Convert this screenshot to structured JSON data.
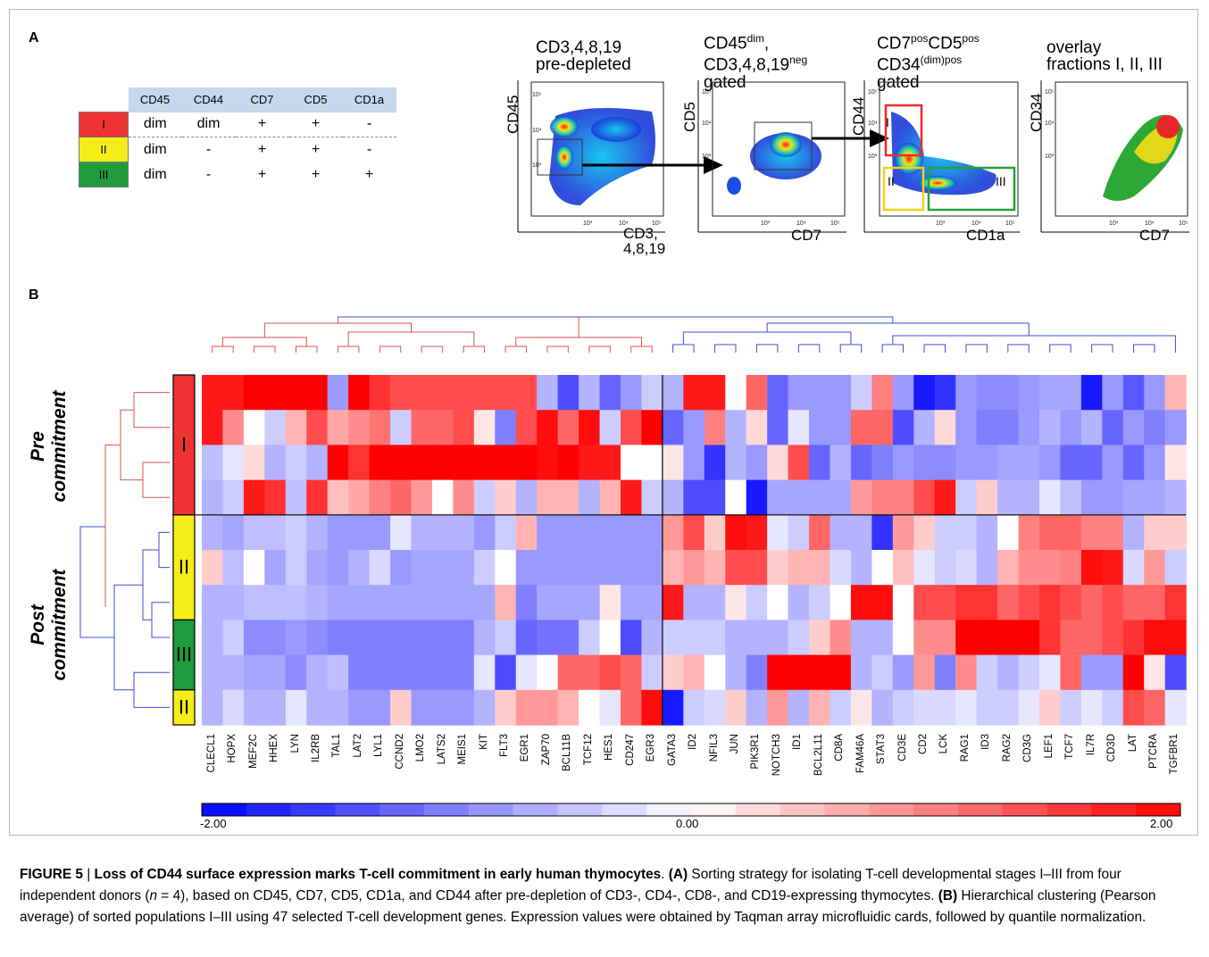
{
  "panels": {
    "a": "A",
    "b": "B"
  },
  "marker_table": {
    "headers": [
      "CD45",
      "CD44",
      "CD7",
      "CD5",
      "CD1a"
    ],
    "rows": [
      {
        "fraction": "I",
        "color": "#ee3232",
        "values": [
          "dim",
          "dim",
          "+",
          "+",
          "-"
        ]
      },
      {
        "fraction": "II",
        "color": "#f5ec1a",
        "values": [
          "dim",
          "-",
          "+",
          "+",
          "-"
        ]
      },
      {
        "fraction": "III",
        "color": "#1f9a3c",
        "values": [
          "dim",
          "-",
          "+",
          "+",
          "+"
        ]
      }
    ]
  },
  "flow": {
    "plot1": {
      "title1": "CD3,4,8,19",
      "title2": "pre-depleted",
      "ylabel": "CD45",
      "xlabel1": "CD3,",
      "xlabel2": "4,8,19"
    },
    "plot2": {
      "title1a": "CD45",
      "title1sup": "dim",
      "title1b": ",",
      "title2a": "CD3,4,8,19",
      "title2sup": "neg",
      "title3": "gated",
      "ylabel": "CD5",
      "xlabel": "CD7"
    },
    "plot3": {
      "title1a": "CD7",
      "title1sup": "pos",
      "title1b": "CD5",
      "title1sup2": "pos",
      "title2a": "CD34",
      "title2sup": "(dim)pos",
      "title3": "gated",
      "ylabel": "CD44",
      "xlabel": "CD1a",
      "gate1": "I",
      "gate2": "II",
      "gate3": "III"
    },
    "plot4": {
      "title1": "overlay",
      "title2": "fractions I, II, III",
      "ylabel": "CD34",
      "xlabel": "CD7"
    },
    "ticks": {
      "t3": "10³",
      "t4": "10⁴",
      "t5": "10⁵",
      "t0": "0"
    }
  },
  "heatmap": {
    "group_labels": {
      "pre1": "Pre",
      "pre2": "commitment",
      "post1": "Post",
      "post2": "commitment"
    },
    "sample_labels": [
      "I",
      "II",
      "III",
      "II"
    ],
    "genes": [
      "CLECL1",
      "HOPX",
      "MEF2C",
      "HHEX",
      "LYN",
      "IL2RB",
      "TAL1",
      "LAT2",
      "LYL1",
      "CCND2",
      "LMO2",
      "LATS2",
      "MEIS1",
      "KIT",
      "FLT3",
      "EGR1",
      "ZAP70",
      "BCL11B",
      "TCF12",
      "HES1",
      "CD247",
      "EGR3",
      "GATA3",
      "ID2",
      "NFIL3",
      "JUN",
      "PIK3R1",
      "NOTCH3",
      "ID1",
      "BCL2L11",
      "CD8A",
      "FAM46A",
      "STAT3",
      "CD3E",
      "CD2",
      "LCK",
      "RAG1",
      "ID3",
      "RAG2",
      "CD3G",
      "LEF1",
      "TCF7",
      "IL7R",
      "CD3D",
      "LAT",
      "PTCRA",
      "TGFBR1"
    ],
    "colorbar": {
      "min": "-2.00",
      "mid": "0.00",
      "max": "2.00"
    }
  },
  "chart_data": {
    "type": "heatmap",
    "columns_ref": "heatmap.genes",
    "rows": [
      "I",
      "I",
      "I",
      "I",
      "II",
      "II",
      "II",
      "III",
      "III",
      "II"
    ],
    "vmin": -2,
    "vmax": 2,
    "values": [
      [
        1.8,
        1.8,
        2,
        2,
        2,
        2,
        -0.8,
        2,
        1.6,
        1.4,
        1.4,
        1.4,
        1.4,
        1.4,
        1.4,
        1.4,
        -0.6,
        -1.4,
        -0.6,
        -1.2,
        -0.8,
        -0.4,
        -0.6,
        1.8,
        1.8,
        0,
        1.2,
        -1.2,
        -0.8,
        -0.8,
        -0.8,
        -0.4,
        1,
        -0.8,
        -1.8,
        -1.6,
        -0.8,
        -0.9,
        -0.9,
        -0.8,
        -0.7,
        -0.7,
        -1.8,
        -0.8,
        -1.3,
        -0.8,
        0.6
      ],
      [
        1.8,
        0.9,
        0,
        -0.4,
        0.6,
        1.4,
        0.7,
        0.9,
        1.1,
        -0.4,
        1.2,
        1.2,
        1.4,
        0.2,
        -1,
        1.4,
        1.9,
        1.2,
        1.9,
        -0.4,
        1.4,
        2,
        -1.2,
        -0.8,
        1,
        -0.6,
        0.3,
        -1.2,
        -0.2,
        -0.8,
        -0.8,
        1.2,
        1.2,
        -1.4,
        -0.6,
        0.3,
        -0.8,
        -1,
        -1,
        -0.8,
        -0.6,
        -0.8,
        -0.6,
        -1.2,
        -0.8,
        -1,
        -0.8
      ],
      [
        -0.5,
        -0.2,
        0.3,
        -0.6,
        -0.4,
        -0.6,
        2,
        1.6,
        2,
        2,
        2,
        2,
        2,
        2,
        2,
        2,
        1.9,
        2,
        1.8,
        1.8,
        0,
        0,
        0.2,
        -0.8,
        -1.6,
        -0.6,
        -0.8,
        0.3,
        1.4,
        -1.2,
        -0.6,
        -1.2,
        -1,
        -0.8,
        -0.9,
        -0.9,
        -0.8,
        -0.8,
        -0.7,
        -0.7,
        -0.8,
        -1.2,
        -1.2,
        -0.8,
        -1.2,
        -0.8,
        0.2
      ],
      [
        -0.6,
        -0.4,
        1.8,
        1.6,
        -0.5,
        1.6,
        0.5,
        0.7,
        1,
        1.2,
        0.8,
        0,
        0.9,
        -0.4,
        0.4,
        -0.6,
        0.6,
        0.6,
        -0.6,
        0.6,
        1.8,
        -0.4,
        -0.6,
        -1.4,
        -1.4,
        0,
        -1.8,
        -0.7,
        -0.7,
        -0.7,
        -0.7,
        0.8,
        1,
        1,
        1.4,
        1.8,
        -0.4,
        0.4,
        -0.6,
        -0.6,
        -0.2,
        -0.5,
        -0.8,
        -0.8,
        -0.7,
        -0.7,
        -0.6
      ],
      [
        -0.6,
        -0.7,
        -0.5,
        -0.5,
        -0.4,
        -0.6,
        -0.8,
        -0.8,
        -0.8,
        -0.2,
        -0.6,
        -0.6,
        -0.6,
        -0.8,
        -0.4,
        0.6,
        -0.8,
        -0.8,
        -0.8,
        -0.8,
        -0.8,
        -0.8,
        0.8,
        1.4,
        0.4,
        1.9,
        1.8,
        -0.2,
        -0.4,
        1.2,
        -0.6,
        -0.6,
        -1.6,
        0.8,
        0.4,
        -0.4,
        -0.4,
        -0.6,
        0,
        1,
        1.2,
        1.2,
        1,
        1,
        -0.6,
        0.4,
        0.4
      ],
      [
        0.4,
        -0.5,
        0,
        -0.7,
        -0.4,
        -0.7,
        -0.8,
        -0.6,
        -0.3,
        -0.8,
        -0.7,
        -0.7,
        -0.7,
        -0.4,
        0,
        -0.8,
        -0.8,
        -0.8,
        -0.8,
        -0.8,
        -0.8,
        -0.8,
        0.6,
        0.8,
        0.6,
        1.4,
        1.4,
        0.4,
        0.6,
        0.6,
        -0.3,
        -0.6,
        0,
        0.5,
        -0.2,
        -0.4,
        -0.3,
        -0.6,
        0.6,
        0.9,
        0.9,
        1,
        1.9,
        1.8,
        -0.3,
        0.8,
        -0.4
      ],
      [
        -0.6,
        -0.6,
        -0.5,
        -0.5,
        -0.5,
        -0.6,
        -0.7,
        -0.7,
        -0.7,
        -0.7,
        -0.7,
        -0.7,
        -0.7,
        -0.7,
        0.6,
        -1,
        -0.7,
        -0.7,
        -0.7,
        0.2,
        -0.7,
        -0.7,
        1.8,
        -0.6,
        -0.6,
        0.2,
        -0.4,
        0,
        -0.6,
        -0.4,
        0,
        1.9,
        1.9,
        0,
        1.4,
        1.4,
        1.6,
        1.6,
        1.2,
        1.4,
        1.6,
        1.4,
        1.2,
        1.4,
        1.2,
        1.2,
        1.6
      ],
      [
        -0.6,
        -0.4,
        -0.9,
        -0.9,
        -0.8,
        -0.9,
        -1,
        -1,
        -1,
        -1,
        -1,
        -1,
        -1,
        -0.6,
        -0.4,
        -1.2,
        -1.1,
        -1.1,
        -0.4,
        0,
        -1.4,
        -0.6,
        -0.4,
        -0.4,
        -0.4,
        -0.6,
        -0.6,
        -0.6,
        -0.4,
        0.4,
        0.9,
        -0.6,
        -0.6,
        0,
        0.9,
        0.9,
        2,
        2,
        2,
        2,
        1.6,
        1.2,
        1.2,
        1.4,
        1.6,
        1.9,
        1.9
      ],
      [
        -0.6,
        -0.6,
        -0.7,
        -0.7,
        -0.9,
        -0.6,
        -0.5,
        -1,
        -1,
        -1,
        -1,
        -1,
        -1,
        -0.2,
        -1.4,
        -0.2,
        0,
        1.2,
        1.2,
        1.4,
        1.2,
        -0.4,
        0.4,
        0.6,
        0,
        -0.6,
        -1,
        2,
        2,
        2,
        2,
        -0.6,
        -0.4,
        -0.8,
        0.8,
        -1,
        0.9,
        -0.4,
        -0.6,
        -0.4,
        -0.2,
        1.2,
        -0.8,
        -0.8,
        2,
        0.2,
        -1.4
      ],
      [
        -0.6,
        -0.3,
        -0.6,
        -0.6,
        -0.2,
        -0.6,
        -0.6,
        -0.8,
        -0.8,
        0.4,
        -0.8,
        -0.8,
        -0.8,
        -0.6,
        0.4,
        0.8,
        0.8,
        0.6,
        0,
        -0.2,
        1.2,
        1.9,
        -1.8,
        -0.4,
        -0.3,
        0.4,
        -0.6,
        0.8,
        -0.6,
        0.6,
        -0.4,
        0.2,
        -0.6,
        -0.4,
        -0.3,
        -0.3,
        -0.2,
        -0.4,
        -0.4,
        -0.2,
        0.4,
        -0.4,
        -0.2,
        -0.4,
        1.4,
        1.2,
        -0.2
      ]
    ]
  },
  "caption": {
    "figure": "FIGURE 5",
    "sep": " | ",
    "title": "Loss of CD44 surface expression marks T-cell commitment in early human thymocytes",
    "a_tag": "(A)",
    "a_text": " Sorting strategy for isolating T-cell developmental stages I–III from four independent donors (",
    "n_var": "n",
    "n_text": " = 4), based on CD45, CD7, CD5, CD1a, and CD44 after pre-depletion of CD3-, CD4-, CD8-, and CD19-expressing thymocytes. ",
    "b_tag": "(B)",
    "b_text": " Hierarchical clustering (Pearson average) of sorted populations I–III using 47 selected T-cell development genes. Expression values were obtained by Taqman array microfluidic cards, followed by quantile normalization."
  }
}
